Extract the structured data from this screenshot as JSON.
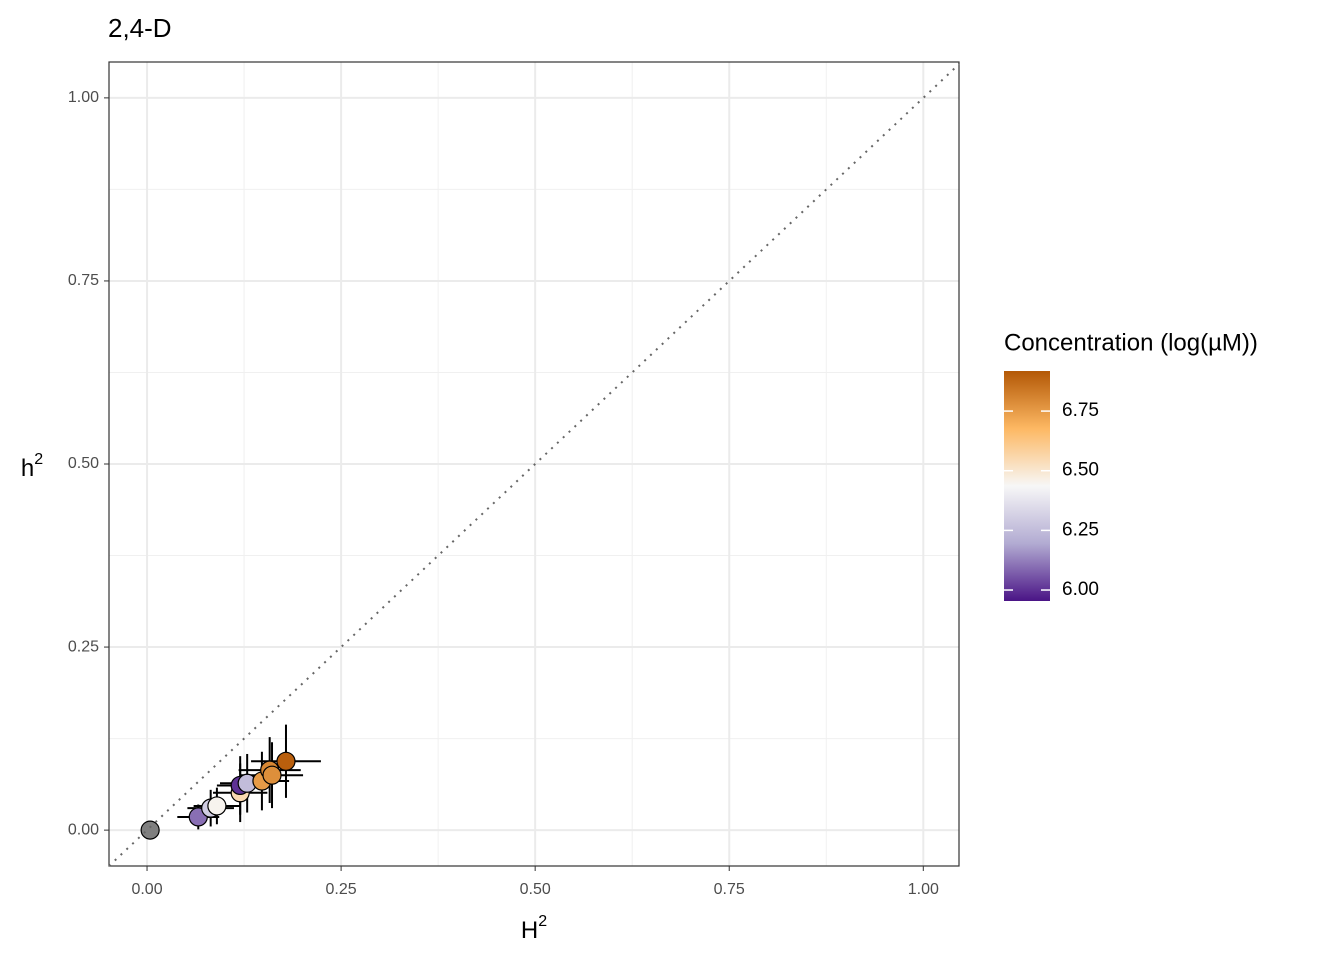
{
  "chart_data": {
    "type": "scatter",
    "title": "2,4-D",
    "x_label": {
      "text": "H",
      "superscript": "2"
    },
    "y_label": {
      "text": "h",
      "superscript": "2"
    },
    "x": [
      0.004,
      0.066,
      0.082,
      0.09,
      0.12,
      0.12,
      0.129,
      0.148,
      0.158,
      0.161,
      0.179
    ],
    "y": [
      0.0,
      0.018,
      0.03,
      0.033,
      0.051,
      0.061,
      0.064,
      0.067,
      0.082,
      0.075,
      0.094
    ],
    "xerr": [
      0,
      0.027,
      0.03,
      0.03,
      0.035,
      0.03,
      0.035,
      0.035,
      0.04,
      0.04,
      0.045
    ],
    "yerr": [
      0,
      0.017,
      0.025,
      0.025,
      0.04,
      0.04,
      0.04,
      0.04,
      0.045,
      0.045,
      0.05
    ],
    "concentration": [
      null,
      6.1,
      6.3,
      6.45,
      6.55,
      6.0,
      6.25,
      6.75,
      6.8,
      6.78,
      6.9
    ],
    "na_color": "#7f7f7f",
    "xlim": [
      -0.049,
      1.046
    ],
    "ylim": [
      -0.049,
      1.049
    ],
    "xticks": [
      {
        "value": 0,
        "label": "0.00"
      },
      {
        "value": 0.25,
        "label": "0.25"
      },
      {
        "value": 0.5,
        "label": "0.50"
      },
      {
        "value": 0.75,
        "label": "0.75"
      },
      {
        "value": 1,
        "label": "1.00"
      }
    ],
    "yticks": [
      {
        "value": 0,
        "label": "0.00"
      },
      {
        "value": 0.25,
        "label": "0.25"
      },
      {
        "value": 0.5,
        "label": "0.50"
      },
      {
        "value": 0.75,
        "label": "0.75"
      },
      {
        "value": 1,
        "label": "1.00"
      }
    ],
    "grid": true,
    "colorbar": {
      "title": "Concentration (log(µM))",
      "lim": [
        5.954,
        6.918
      ],
      "colors": [
        "#4a1486",
        "#b2abd2",
        "#f7f7f7",
        "#fdb863",
        "#b35806"
      ],
      "ticks": [
        {
          "value": 6,
          "label": "6.00"
        },
        {
          "value": 6.25,
          "label": "6.25"
        },
        {
          "value": 6.5,
          "label": "6.50"
        },
        {
          "value": 6.75,
          "label": "6.75"
        }
      ]
    }
  }
}
